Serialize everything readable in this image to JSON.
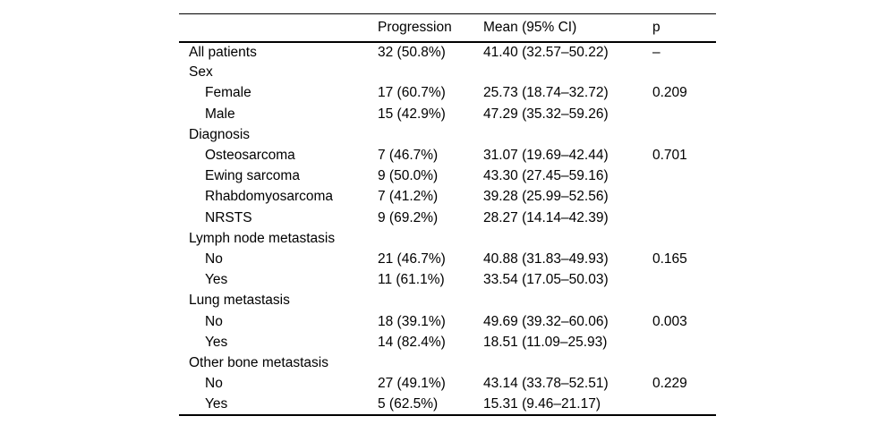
{
  "table": {
    "columns": [
      "",
      "Progression",
      "Mean (95% CI)",
      "p"
    ],
    "rows": [
      {
        "label": "All patients",
        "indent": false,
        "progression": "32 (50.8%)",
        "mean": "41.40 (32.57–50.22)",
        "p": "–",
        "p_bold": false
      },
      {
        "label": "Sex",
        "indent": false,
        "progression": "",
        "mean": "",
        "p": "",
        "p_bold": false
      },
      {
        "label": "Female",
        "indent": true,
        "progression": "17 (60.7%)",
        "mean": "25.73 (18.74–32.72)",
        "p": "0.209",
        "p_bold": false
      },
      {
        "label": "Male",
        "indent": true,
        "progression": "15 (42.9%)",
        "mean": "47.29 (35.32–59.26)",
        "p": "",
        "p_bold": false
      },
      {
        "label": "Diagnosis",
        "indent": false,
        "progression": "",
        "mean": "",
        "p": "",
        "p_bold": false
      },
      {
        "label": "Osteosarcoma",
        "indent": true,
        "progression": "7 (46.7%)",
        "mean": "31.07 (19.69–42.44)",
        "p": "0.701",
        "p_bold": false
      },
      {
        "label": "Ewing sarcoma",
        "indent": true,
        "progression": "9 (50.0%)",
        "mean": "43.30 (27.45–59.16)",
        "p": "",
        "p_bold": false
      },
      {
        "label": "Rhabdomyosarcoma",
        "indent": true,
        "progression": "7 (41.2%)",
        "mean": "39.28 (25.99–52.56)",
        "p": "",
        "p_bold": false
      },
      {
        "label": "NRSTS",
        "indent": true,
        "progression": "9 (69.2%)",
        "mean": "28.27 (14.14–42.39)",
        "p": "",
        "p_bold": false
      },
      {
        "label": "Lymph node metastasis",
        "indent": false,
        "progression": "",
        "mean": "",
        "p": "",
        "p_bold": false
      },
      {
        "label": "No",
        "indent": true,
        "progression": "21 (46.7%)",
        "mean": "40.88 (31.83–49.93)",
        "p": "0.165",
        "p_bold": false
      },
      {
        "label": "Yes",
        "indent": true,
        "progression": "11 (61.1%)",
        "mean": "33.54 (17.05–50.03)",
        "p": "",
        "p_bold": false
      },
      {
        "label": "Lung metastasis",
        "indent": false,
        "progression": "",
        "mean": "",
        "p": "",
        "p_bold": false
      },
      {
        "label": "No",
        "indent": true,
        "progression": "18 (39.1%)",
        "mean": "49.69 (39.32–60.06)",
        "p": "0.003",
        "p_bold": true
      },
      {
        "label": "Yes",
        "indent": true,
        "progression": "14 (82.4%)",
        "mean": "18.51 (11.09–25.93)",
        "p": "",
        "p_bold": false
      },
      {
        "label": "Other bone metastasis",
        "indent": false,
        "progression": "",
        "mean": "",
        "p": "",
        "p_bold": false
      },
      {
        "label": "No",
        "indent": true,
        "progression": "27 (49.1%)",
        "mean": "43.14 (33.78–52.51)",
        "p": "0.229",
        "p_bold": false
      },
      {
        "label": "Yes",
        "indent": true,
        "progression": "5 (62.5%)",
        "mean": "15.31 (9.46–21.17)",
        "p": "",
        "p_bold": false
      }
    ]
  }
}
